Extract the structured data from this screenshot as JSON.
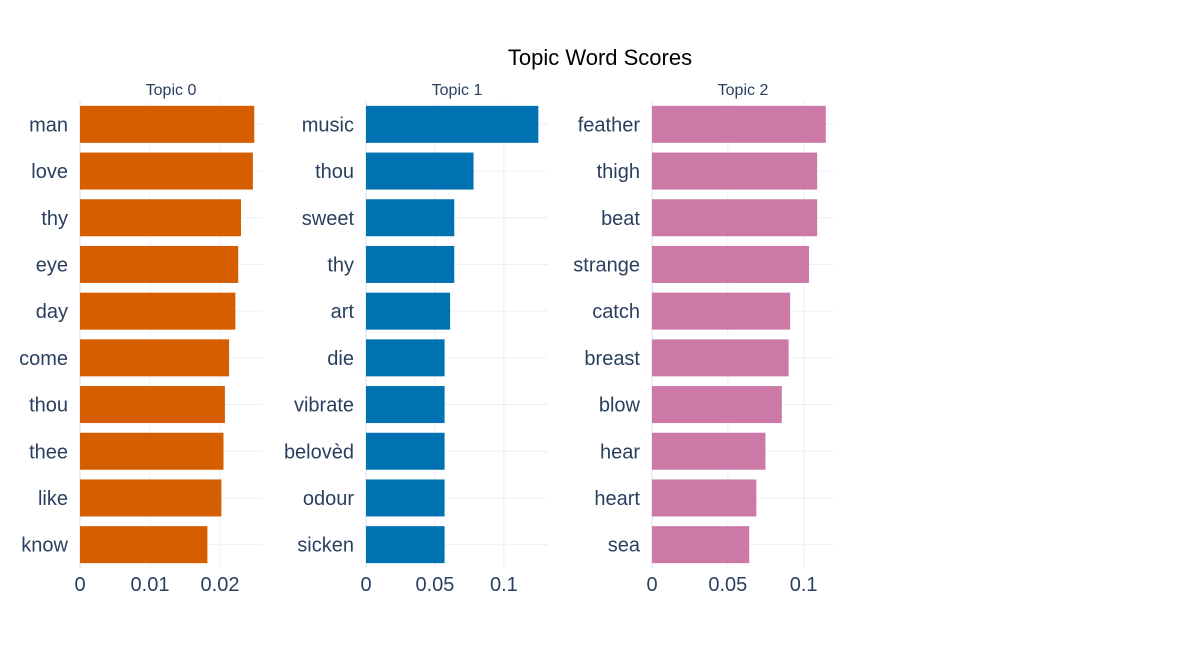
{
  "chart_data": {
    "title": "Topic Word Scores",
    "type": "bar",
    "orientation": "horizontal",
    "grid": true,
    "panels": [
      {
        "title": "Topic 0",
        "color": "#D55E00",
        "categories": [
          "man",
          "love",
          "thy",
          "eye",
          "day",
          "come",
          "thou",
          "thee",
          "like",
          "know"
        ],
        "values": [
          0.0249,
          0.0247,
          0.023,
          0.0226,
          0.0222,
          0.0213,
          0.0207,
          0.0205,
          0.0202,
          0.0182
        ],
        "xlim": [
          0,
          0.026
        ],
        "xticks": [
          0,
          0.01,
          0.02
        ],
        "xtick_labels": [
          "0",
          "0.01",
          "0.02"
        ]
      },
      {
        "title": "Topic 1",
        "color": "#0072B2",
        "categories": [
          "music",
          "thou",
          "sweet",
          "thy",
          "art",
          "die",
          "vibrate",
          "belovèd",
          "odour",
          "sicken"
        ],
        "values": [
          0.125,
          0.078,
          0.064,
          0.064,
          0.061,
          0.057,
          0.057,
          0.057,
          0.057,
          0.057
        ],
        "xlim": [
          0,
          0.132
        ],
        "xticks": [
          0,
          0.05,
          0.1
        ],
        "xtick_labels": [
          "0",
          "0.05",
          "0.1"
        ]
      },
      {
        "title": "Topic 2",
        "color": "#CC79A7",
        "categories": [
          "feather",
          "thigh",
          "beat",
          "strange",
          "catch",
          "breast",
          "blow",
          "hear",
          "heart",
          "sea"
        ],
        "values": [
          0.1146,
          0.1089,
          0.1089,
          0.1035,
          0.0911,
          0.0901,
          0.0856,
          0.0748,
          0.0688,
          0.0641
        ],
        "xlim": [
          0,
          0.12
        ],
        "xticks": [
          0,
          0.05,
          0.1
        ],
        "xtick_labels": [
          "0",
          "0.05",
          "0.1"
        ]
      }
    ]
  }
}
